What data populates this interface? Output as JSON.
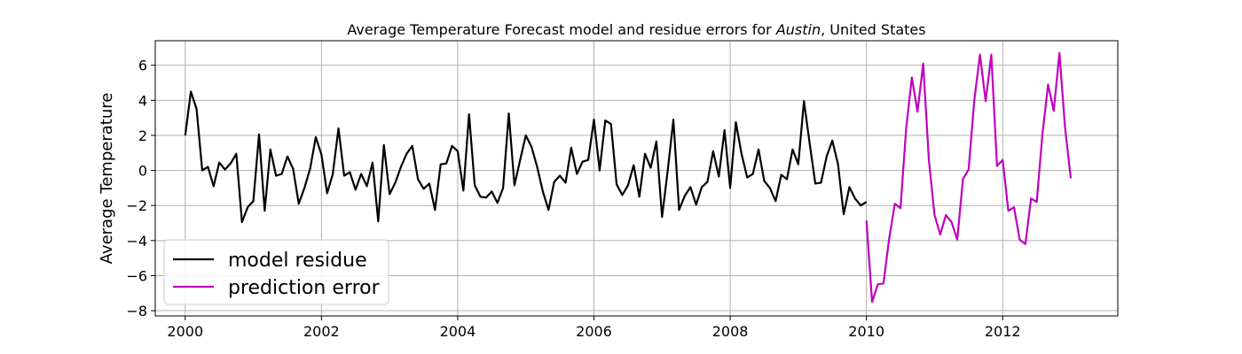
{
  "chart_data": {
    "type": "line",
    "title": {
      "prefix": "Average Temperature Forecast model and residue errors for ",
      "city": "Austin",
      "suffix": ", United States"
    },
    "xlabel": "",
    "ylabel": "Average Temperature",
    "xlim": [
      1999.56,
      2013.69
    ],
    "ylim": [
      -8.3,
      7.4
    ],
    "xticks": [
      2000,
      2002,
      2004,
      2006,
      2008,
      2010,
      2012
    ],
    "yticks": [
      -8,
      -6,
      -4,
      -2,
      0,
      2,
      4,
      6
    ],
    "grid": true,
    "legend_position": "lower-left",
    "series": [
      {
        "name": "model residue",
        "color": "#000000",
        "start": 2000.0,
        "step": 0.08333,
        "values": [
          2.0,
          4.5,
          3.5,
          0.0,
          0.2,
          -0.9,
          0.45,
          0.05,
          0.4,
          0.95,
          -2.95,
          -2.1,
          -1.75,
          2.05,
          -2.3,
          1.2,
          -0.3,
          -0.2,
          0.8,
          0.1,
          -1.9,
          -1.0,
          0.1,
          1.9,
          0.9,
          -1.3,
          -0.2,
          2.4,
          -0.3,
          -0.1,
          -1.1,
          -0.2,
          -0.9,
          0.45,
          -2.9,
          1.45,
          -1.35,
          -0.7,
          0.2,
          0.95,
          1.4,
          -0.5,
          -1.05,
          -0.75,
          -2.25,
          0.35,
          0.4,
          1.4,
          1.1,
          -1.15,
          3.2,
          -0.85,
          -1.5,
          -1.55,
          -1.2,
          -1.85,
          -1.0,
          3.25,
          -0.85,
          0.6,
          2.0,
          1.35,
          0.2,
          -1.2,
          -2.25,
          -0.65,
          -0.3,
          -0.7,
          1.3,
          -0.2,
          0.5,
          0.6,
          2.9,
          0.0,
          2.85,
          2.65,
          -0.8,
          -1.4,
          -0.85,
          0.3,
          -1.5,
          0.95,
          0.15,
          1.65,
          -2.65,
          0.0,
          2.9,
          -2.25,
          -1.45,
          -0.95,
          -1.95,
          -0.95,
          -0.65,
          1.1,
          -0.35,
          2.3,
          -1.0,
          2.75,
          0.95,
          -0.4,
          -0.2,
          1.2,
          -0.6,
          -1.0,
          -1.75,
          -0.25,
          -0.5,
          1.2,
          0.35,
          3.95,
          1.55,
          -0.75,
          -0.7,
          0.8,
          1.7,
          0.35,
          -2.5,
          -0.95,
          -1.6,
          -2.0,
          -1.8
        ]
      },
      {
        "name": "prediction error",
        "color": "#bf00bf",
        "start": 2010.0,
        "step": 0.08333,
        "values": [
          -2.85,
          -7.5,
          -6.5,
          -6.45,
          -3.9,
          -1.9,
          -2.15,
          2.4,
          5.3,
          3.35,
          6.1,
          0.6,
          -2.55,
          -3.65,
          -2.55,
          -2.95,
          -3.95,
          -0.5,
          0.05,
          4.0,
          6.6,
          3.95,
          6.6,
          0.25,
          0.6,
          -2.3,
          -2.1,
          -3.95,
          -4.2,
          -1.6,
          -1.8,
          2.05,
          4.9,
          3.4,
          6.7,
          2.4,
          -0.45
        ]
      }
    ]
  }
}
